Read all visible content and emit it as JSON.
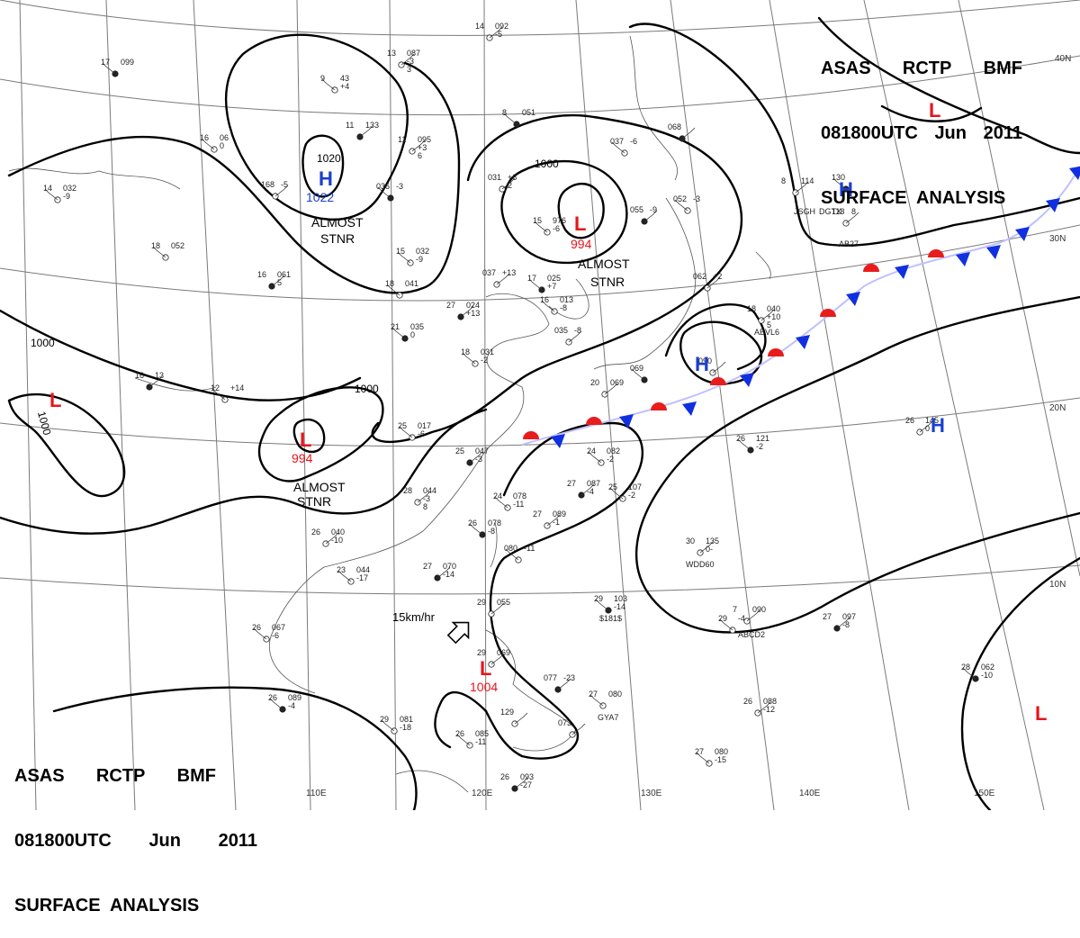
{
  "titles": {
    "line1": [
      "ASAS",
      "RCTP",
      "BMF"
    ],
    "line2": [
      "081800UTC",
      "Jun",
      "2011"
    ],
    "line3": "SURFACE  ANALYSIS"
  },
  "colors": {
    "high": "#1a3fcc",
    "low": "#e8141c",
    "cold_front": "#1030e0",
    "warm_front": "#e81c1c",
    "isobar": "#000000",
    "coast": "#555555",
    "grid": "#7a7a7a"
  },
  "graticule": {
    "lon_labels": [
      "110E",
      "120E",
      "130E",
      "140E",
      "150E"
    ],
    "lat_labels": [
      "40N",
      "30N",
      "20N",
      "10N"
    ]
  },
  "isobar_labels": [
    "1020",
    "1000",
    "1000",
    "1000",
    "1000"
  ],
  "pressure_systems": [
    {
      "type": "H",
      "value": "1022"
    },
    {
      "type": "L",
      "value": "994"
    },
    {
      "type": "L",
      "value": "994"
    },
    {
      "type": "L",
      "value": "1004"
    },
    {
      "type": "L",
      "value": ""
    },
    {
      "type": "L",
      "value": ""
    },
    {
      "type": "L",
      "value": ""
    },
    {
      "type": "H",
      "value": ""
    },
    {
      "type": "H",
      "value": ""
    },
    {
      "type": "H",
      "value": ""
    }
  ],
  "annotations": [
    {
      "line1": "ALMOST",
      "line2": "STNR"
    },
    {
      "line1": "ALMOST",
      "line2": "STNR"
    },
    {
      "line1": "ALMOST",
      "line2": "STNR"
    }
  ],
  "wind_scale": {
    "label": "15km/hr"
  },
  "stations": [
    {
      "lines": [
        "17",
        "099"
      ]
    },
    {
      "lines": [
        "13",
        "087",
        "-3",
        "3"
      ]
    },
    {
      "lines": [
        "9",
        "43",
        "+4"
      ]
    },
    {
      "lines": [
        "11",
        "133"
      ]
    },
    {
      "lines": [
        "16",
        "06",
        "0"
      ]
    },
    {
      "lines": [
        "11",
        "095",
        "+3",
        "6"
      ]
    },
    {
      "lines": [
        "8",
        "051"
      ]
    },
    {
      "lines": [
        "14",
        "092",
        "-5"
      ]
    },
    {
      "lines": [
        "037",
        "-6"
      ]
    },
    {
      "lines": [
        "068"
      ]
    },
    {
      "lines": [
        "14",
        "032",
        "-9"
      ]
    },
    {
      "lines": [
        "168",
        "-5"
      ]
    },
    {
      "lines": [
        "036",
        "-3"
      ]
    },
    {
      "lines": [
        "031",
        "+6",
        "2"
      ]
    },
    {
      "lines": [
        "15",
        "976",
        "-6"
      ]
    },
    {
      "lines": [
        "055",
        "-9"
      ]
    },
    {
      "lines": [
        "052",
        "-3"
      ]
    },
    {
      "lines": [
        "8",
        "114"
      ]
    },
    {
      "lines": [
        "130"
      ]
    },
    {
      "lines": [
        "118",
        "8"
      ]
    },
    {
      "lines": [
        "18",
        "052"
      ]
    },
    {
      "lines": [
        "16",
        "061",
        "5"
      ]
    },
    {
      "lines": [
        "15",
        "032",
        "-9"
      ]
    },
    {
      "lines": [
        "037",
        "+13"
      ]
    },
    {
      "lines": [
        "17",
        "025",
        "+7"
      ]
    },
    {
      "lines": [
        "062",
        "+2"
      ]
    },
    {
      "lines": [
        "18",
        "041"
      ]
    },
    {
      "lines": [
        "27",
        "024",
        "+13"
      ]
    },
    {
      "lines": [
        "16",
        "013",
        "-8"
      ]
    },
    {
      "lines": [
        "18",
        "040",
        "+10",
        "5"
      ]
    },
    {
      "lines": [
        "21",
        "035",
        "0"
      ]
    },
    {
      "lines": [
        "035",
        "-8"
      ]
    },
    {
      "lines": [
        "18",
        "031",
        "-2"
      ]
    },
    {
      "lines": [
        "16",
        "13"
      ]
    },
    {
      "lines": [
        "12",
        "+14"
      ]
    },
    {
      "lines": [
        "090"
      ]
    },
    {
      "lines": [
        "069"
      ]
    },
    {
      "lines": [
        "20",
        "069"
      ]
    },
    {
      "lines": [
        "25",
        "017",
        "-6"
      ]
    },
    {
      "lines": [
        "25",
        "047",
        "-3"
      ]
    },
    {
      "lines": [
        "24",
        "082",
        "-2"
      ]
    },
    {
      "lines": [
        "26",
        "145",
        "0"
      ]
    },
    {
      "lines": [
        "26",
        "121",
        "-2"
      ]
    },
    {
      "lines": [
        "28",
        "044",
        "-3",
        "8"
      ]
    },
    {
      "lines": [
        "24",
        "078",
        "-11"
      ]
    },
    {
      "lines": [
        "27",
        "087",
        "-4"
      ]
    },
    {
      "lines": [
        "25",
        "107",
        "-2"
      ]
    },
    {
      "lines": [
        "27",
        "089",
        "-1"
      ]
    },
    {
      "lines": [
        "26",
        "078",
        "-8"
      ]
    },
    {
      "lines": [
        "26",
        "040",
        "-10"
      ]
    },
    {
      "lines": [
        "23",
        "044",
        "-17"
      ]
    },
    {
      "lines": [
        "27",
        "070",
        "-14"
      ]
    },
    {
      "lines": [
        "080",
        "-11"
      ]
    },
    {
      "lines": [
        "30",
        "135",
        "0-"
      ]
    },
    {
      "lines": [
        "29",
        "103",
        "-14"
      ]
    },
    {
      "lines": [
        "7",
        "090"
      ]
    },
    {
      "lines": [
        "29",
        "-4"
      ]
    },
    {
      "lines": [
        "27",
        "097",
        "-8"
      ]
    },
    {
      "lines": [
        "26",
        "067",
        "-6"
      ]
    },
    {
      "lines": [
        "29",
        "055"
      ]
    },
    {
      "lines": [
        "26",
        "089",
        "-4"
      ]
    },
    {
      "lines": [
        "29",
        "069"
      ]
    },
    {
      "lines": [
        "29",
        "081",
        "-18"
      ]
    },
    {
      "lines": [
        "077",
        "-23"
      ]
    },
    {
      "lines": [
        "27",
        "080"
      ]
    },
    {
      "lines": [
        "26",
        "088",
        "-12"
      ]
    },
    {
      "lines": [
        "28",
        "062",
        "-10"
      ]
    },
    {
      "lines": [
        "129"
      ]
    },
    {
      "lines": [
        "26",
        "085",
        "-11"
      ]
    },
    {
      "lines": [
        "26",
        "093",
        "-27"
      ]
    },
    {
      "lines": [
        "27",
        "080",
        "-15"
      ]
    },
    {
      "lines": [
        "073"
      ]
    }
  ],
  "ship_ids": [
    "JSGH",
    "DGTX",
    "ABVL6",
    "WDD60",
    "ABCD2",
    "$181$",
    "GYA7",
    "AB27"
  ]
}
